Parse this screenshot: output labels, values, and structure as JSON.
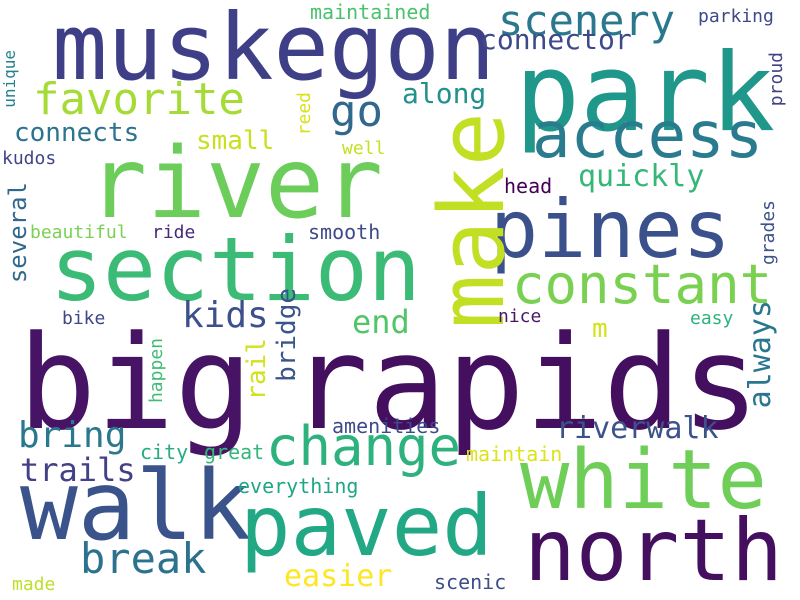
{
  "palette": {
    "background": "#ffffff",
    "scheme": "viridis"
  },
  "words": [
    {
      "text": "big",
      "color": "#471365"
    },
    {
      "text": "rapids",
      "color": "#440f5f"
    },
    {
      "text": "river",
      "color": "#6ccd5a"
    },
    {
      "text": "park",
      "color": "#1f978b"
    },
    {
      "text": "muskegon",
      "color": "#3f3f88"
    },
    {
      "text": "section",
      "color": "#3bbb75"
    },
    {
      "text": "walk",
      "color": "#3a538b"
    },
    {
      "text": "paved",
      "color": "#22a884"
    },
    {
      "text": "white",
      "color": "#6ece58"
    },
    {
      "text": "north",
      "color": "#450f5f"
    },
    {
      "text": "pines",
      "color": "#3b518b"
    },
    {
      "text": "access",
      "color": "#287c8e"
    },
    {
      "text": "make",
      "color": "#c2df23"
    },
    {
      "text": "constant",
      "color": "#7ad151"
    },
    {
      "text": "change",
      "color": "#2db27d"
    },
    {
      "text": "scenery",
      "color": "#2a788e"
    },
    {
      "text": "favorite",
      "color": "#a5db36"
    },
    {
      "text": "go",
      "color": "#31688e"
    },
    {
      "text": "connector",
      "color": "#3e4989"
    },
    {
      "text": "break",
      "color": "#2c728e"
    },
    {
      "text": "bring",
      "color": "#2a788e"
    },
    {
      "text": "trails",
      "color": "#424086"
    },
    {
      "text": "kids",
      "color": "#3c508b"
    },
    {
      "text": "end",
      "color": "#52c569"
    },
    {
      "text": "easier",
      "color": "#fde725"
    },
    {
      "text": "quickly",
      "color": "#35b779"
    },
    {
      "text": "riverwalk",
      "color": "#3b528b"
    },
    {
      "text": "always",
      "color": "#2a768e"
    },
    {
      "text": "along",
      "color": "#21918c"
    },
    {
      "text": "connects",
      "color": "#2c738e"
    },
    {
      "text": "small",
      "color": "#c8e020"
    },
    {
      "text": "several",
      "color": "#31688e"
    },
    {
      "text": "bridge",
      "color": "#3a548c"
    },
    {
      "text": "rail",
      "color": "#d2e21b"
    },
    {
      "text": "maintained",
      "color": "#4ac16d"
    },
    {
      "text": "parking",
      "color": "#3e4989"
    },
    {
      "text": "proud",
      "color": "#424086"
    },
    {
      "text": "grades",
      "color": "#3b528b"
    },
    {
      "text": "unique",
      "color": "#26828e"
    },
    {
      "text": "kudos",
      "color": "#414487"
    },
    {
      "text": "reed",
      "color": "#d8e219"
    },
    {
      "text": "well",
      "color": "#c5e021"
    },
    {
      "text": "head",
      "color": "#440154"
    },
    {
      "text": "beautiful",
      "color": "#7ad151"
    },
    {
      "text": "ride",
      "color": "#482878"
    },
    {
      "text": "smooth",
      "color": "#3e4a89"
    },
    {
      "text": "bike",
      "color": "#3f4788"
    },
    {
      "text": "happen",
      "color": "#3fbc73"
    },
    {
      "text": "nice",
      "color": "#481668"
    },
    {
      "text": "m",
      "color": "#d5e21a"
    },
    {
      "text": "easy",
      "color": "#2db27d"
    },
    {
      "text": "amenities",
      "color": "#3e4989"
    },
    {
      "text": "city",
      "color": "#25ac82"
    },
    {
      "text": "great",
      "color": "#35b779"
    },
    {
      "text": "maintain",
      "color": "#dde318"
    },
    {
      "text": "everything",
      "color": "#21a685"
    },
    {
      "text": "made",
      "color": "#bddf26"
    },
    {
      "text": "scenic",
      "color": "#3d4e8a"
    }
  ]
}
